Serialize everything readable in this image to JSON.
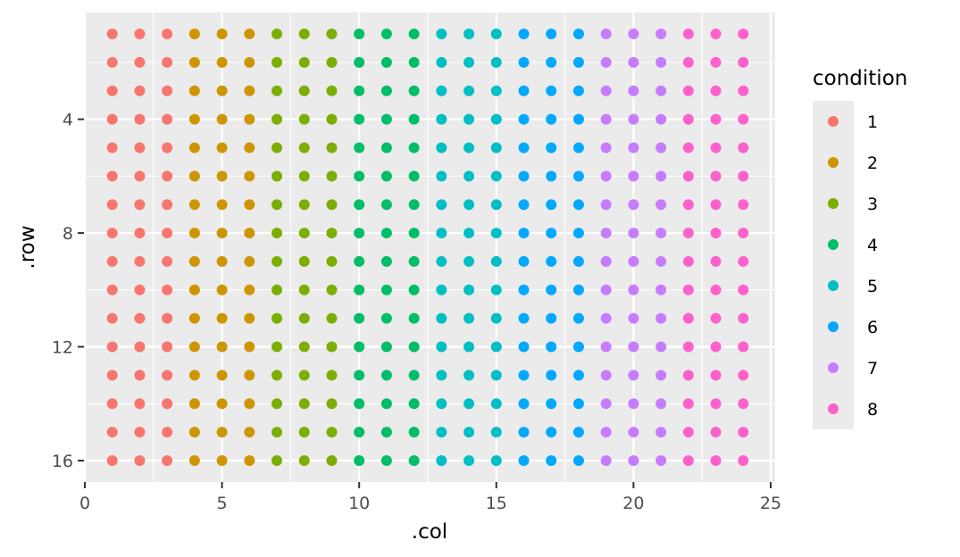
{
  "chart_data": {
    "type": "scatter",
    "xlabel": ".col",
    "ylabel": ".row",
    "xlim": [
      0,
      25
    ],
    "ylim": [
      16,
      1
    ],
    "y_reversed": true,
    "grid": true,
    "x_ticks": [
      0,
      5,
      10,
      15,
      20,
      25
    ],
    "y_ticks": [
      4,
      8,
      12,
      16
    ],
    "x_tick_labels": [
      "0",
      "5",
      "10",
      "15",
      "20",
      "25"
    ],
    "y_tick_labels": [
      "4",
      "8",
      "12",
      "16"
    ],
    "cols": [
      1,
      2,
      3,
      4,
      5,
      6,
      7,
      8,
      9,
      10,
      11,
      12,
      13,
      14,
      15,
      16,
      17,
      18,
      19,
      20,
      21,
      22,
      23,
      24
    ],
    "rows": [
      1,
      2,
      3,
      4,
      5,
      6,
      7,
      8,
      9,
      10,
      11,
      12,
      13,
      14,
      15,
      16
    ],
    "condition_by_col": [
      1,
      1,
      1,
      2,
      2,
      2,
      3,
      3,
      3,
      4,
      4,
      4,
      5,
      5,
      5,
      6,
      6,
      6,
      7,
      7,
      7,
      8,
      8,
      8
    ],
    "legend": {
      "title": "condition",
      "position": "right",
      "entries": [
        "1",
        "2",
        "3",
        "4",
        "5",
        "6",
        "7",
        "8"
      ]
    },
    "colors": [
      "#F8766D",
      "#CD9600",
      "#7CAE00",
      "#00BE67",
      "#00BFC4",
      "#00A9FF",
      "#C77CFF",
      "#FF61CC"
    ],
    "panel_background": "#EBEBEB",
    "grid_color": "#FFFFFF"
  }
}
